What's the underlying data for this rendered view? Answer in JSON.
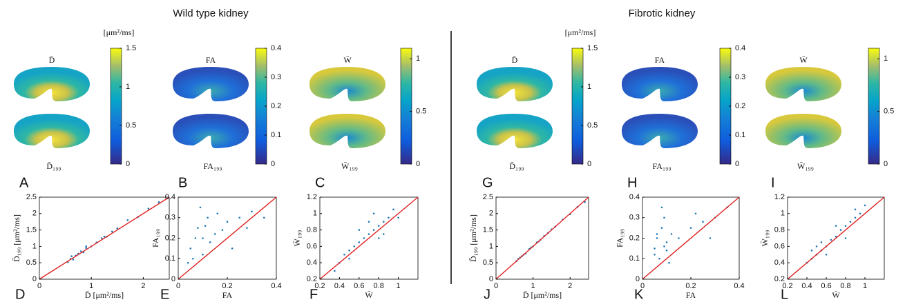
{
  "titles": [
    "Wild type kidney",
    "Fibrotic kidney"
  ],
  "map_panels": [
    {
      "letter": "A",
      "top_label": "D̄",
      "bottom_label": "D̄₁₉₉",
      "colorbar": {
        "unit": "[μm²/ms]",
        "lim": [
          0,
          1.5
        ],
        "ticks": [
          0,
          0.5,
          1,
          1.5
        ]
      }
    },
    {
      "letter": "B",
      "top_label": "FA",
      "bottom_label": "FA₁₉₉",
      "colorbar": {
        "lim": [
          0,
          0.4
        ],
        "ticks": [
          0,
          0.1,
          0.2,
          0.3,
          0.4
        ]
      }
    },
    {
      "letter": "C",
      "top_label": "W̄",
      "bottom_label": "W̄₁₉₉",
      "colorbar": {
        "lim": [
          0,
          1.1
        ],
        "ticks": [
          0,
          0.5,
          1
        ]
      }
    },
    {
      "letter": "G",
      "top_label": "D̄",
      "bottom_label": "D̄₁₉₉",
      "colorbar": {
        "unit": "[μm²/ms]",
        "lim": [
          0,
          1.5
        ],
        "ticks": [
          0,
          0.5,
          1,
          1.5
        ]
      }
    },
    {
      "letter": "H",
      "top_label": "FA",
      "bottom_label": "FA₁₉₉",
      "colorbar": {
        "lim": [
          0,
          0.4
        ],
        "ticks": [
          0,
          0.1,
          0.2,
          0.3,
          0.4
        ]
      }
    },
    {
      "letter": "I",
      "top_label": "W̄",
      "bottom_label": "W̄₁₉₉",
      "colorbar": {
        "lim": [
          0,
          1.1
        ],
        "ticks": [
          0,
          0.5,
          1
        ]
      }
    }
  ],
  "chart_data": [
    {
      "type": "scatter",
      "letter": "D",
      "x_label": "D̄ [μm²/ms]",
      "y_label": "D̄₁₉₉ [μm²/ms]",
      "color": "#1f77b4",
      "line_color": "#e02020",
      "xlim": [
        0,
        2.5
      ],
      "ylim": [
        0,
        2.5
      ],
      "xticks": [
        0,
        1,
        2
      ],
      "yticks": [
        0,
        0.5,
        1,
        1.5,
        2,
        2.5
      ],
      "x": [
        0.55,
        0.6,
        0.65,
        0.7,
        0.75,
        0.8,
        0.85,
        0.9,
        1.0,
        1.1,
        1.2,
        1.3,
        1.4,
        1.5,
        1.7,
        1.9,
        2.1,
        2.3,
        0.62,
        0.9,
        1.25
      ],
      "values": [
        0.52,
        0.62,
        0.6,
        0.72,
        0.78,
        0.85,
        0.82,
        0.95,
        1.0,
        1.12,
        1.25,
        1.3,
        1.45,
        1.55,
        1.8,
        1.9,
        2.15,
        2.35,
        0.7,
        1.0,
        1.3
      ]
    },
    {
      "type": "scatter",
      "letter": "E",
      "x_label": "FA",
      "y_label": "FA₁₉₉",
      "color": "#1f77b4",
      "line_color": "#e02020",
      "xlim": [
        0,
        0.4
      ],
      "ylim": [
        0,
        0.4
      ],
      "xticks": [
        0,
        0.2,
        0.4
      ],
      "yticks": [
        0,
        0.1,
        0.2,
        0.3,
        0.4
      ],
      "x": [
        0.05,
        0.08,
        0.1,
        0.12,
        0.06,
        0.15,
        0.2,
        0.25,
        0.1,
        0.09,
        0.3,
        0.13,
        0.18,
        0.07,
        0.22,
        0.11,
        0.04,
        0.16,
        0.28,
        0.35
      ],
      "values": [
        0.15,
        0.25,
        0.2,
        0.3,
        0.1,
        0.22,
        0.28,
        0.3,
        0.12,
        0.35,
        0.33,
        0.18,
        0.24,
        0.2,
        0.15,
        0.26,
        0.08,
        0.32,
        0.25,
        0.3
      ]
    },
    {
      "type": "scatter",
      "letter": "F",
      "x_label": "W̄",
      "y_label": "W̄₁₉₉",
      "color": "#1f77b4",
      "line_color": "#e02020",
      "xlim": [
        0.2,
        1.2
      ],
      "ylim": [
        0.2,
        1.2
      ],
      "xticks": [
        0.2,
        0.4,
        0.6,
        0.8,
        1
      ],
      "yticks": [
        0.2,
        0.4,
        0.6,
        0.8,
        1,
        1.2
      ],
      "x": [
        0.4,
        0.45,
        0.5,
        0.55,
        0.6,
        0.65,
        0.7,
        0.75,
        0.8,
        0.85,
        0.9,
        0.95,
        0.6,
        0.7,
        0.8,
        0.5,
        0.75,
        0.85,
        1.0,
        0.35
      ],
      "values": [
        0.4,
        0.5,
        0.55,
        0.6,
        0.65,
        0.7,
        0.75,
        0.8,
        0.85,
        0.9,
        0.95,
        1.05,
        0.8,
        0.9,
        0.7,
        0.45,
        1.0,
        0.75,
        0.95,
        0.3
      ]
    },
    {
      "type": "scatter",
      "letter": "J",
      "x_label": "D̄ [μm²/ms]",
      "y_label": "D̄₁₉₉ [μm²/ms]",
      "color": "#1f77b4",
      "line_color": "#e02020",
      "xlim": [
        0,
        2.5
      ],
      "ylim": [
        0,
        2.5
      ],
      "xticks": [
        0,
        1,
        2
      ],
      "yticks": [
        0,
        0.5,
        1,
        1.5,
        2,
        2.5
      ],
      "x": [
        0.55,
        0.6,
        0.7,
        0.8,
        0.9,
        1.0,
        1.1,
        1.2,
        1.3,
        1.4,
        1.5,
        1.6,
        1.8,
        2.0,
        2.2,
        2.4,
        0.65,
        0.75,
        0.95,
        1.15
      ],
      "values": [
        0.55,
        0.62,
        0.7,
        0.78,
        0.92,
        1.0,
        1.12,
        1.2,
        1.32,
        1.4,
        1.52,
        1.6,
        1.82,
        1.98,
        2.2,
        2.35,
        0.66,
        0.75,
        0.97,
        1.15
      ]
    },
    {
      "type": "scatter",
      "letter": "K",
      "x_label": "FA",
      "y_label": "FA₁₉₉",
      "color": "#1f77b4",
      "line_color": "#e02020",
      "xlim": [
        0,
        0.4
      ],
      "ylim": [
        0,
        0.4
      ],
      "xticks": [
        0,
        0.2,
        0.4
      ],
      "yticks": [
        0,
        0.1,
        0.2,
        0.3,
        0.4
      ],
      "x": [
        0.05,
        0.06,
        0.08,
        0.1,
        0.07,
        0.09,
        0.12,
        0.05,
        0.08,
        0.2,
        0.25,
        0.3,
        0.35,
        0.15,
        0.1,
        0.06,
        0.28,
        0.22,
        0.09,
        0.11
      ],
      "values": [
        0.15,
        0.2,
        0.25,
        0.18,
        0.1,
        0.3,
        0.22,
        0.12,
        0.35,
        0.25,
        0.28,
        0.3,
        0.35,
        0.2,
        0.14,
        0.22,
        0.2,
        0.32,
        0.16,
        0.08
      ]
    },
    {
      "type": "scatter",
      "letter": "L",
      "x_label": "W̄",
      "y_label": "W̄₁₉₉",
      "color": "#1f77b4",
      "line_color": "#e02020",
      "xlim": [
        0.2,
        1.2
      ],
      "ylim": [
        0.2,
        1.2
      ],
      "xticks": [
        0.2,
        0.4,
        0.6,
        0.8,
        1
      ],
      "yticks": [
        0.2,
        0.4,
        0.6,
        0.8,
        1,
        1.2
      ],
      "x": [
        0.4,
        0.45,
        0.5,
        0.55,
        0.6,
        0.65,
        0.7,
        0.75,
        0.8,
        0.85,
        0.9,
        0.95,
        1.0,
        0.5,
        0.6,
        0.7,
        0.8,
        0.45,
        0.55,
        0.9
      ],
      "values": [
        0.4,
        0.45,
        0.5,
        0.55,
        0.6,
        0.68,
        0.72,
        0.8,
        0.85,
        0.9,
        0.95,
        1.0,
        1.1,
        0.6,
        0.5,
        0.85,
        0.7,
        0.55,
        0.65,
        1.05
      ]
    }
  ]
}
